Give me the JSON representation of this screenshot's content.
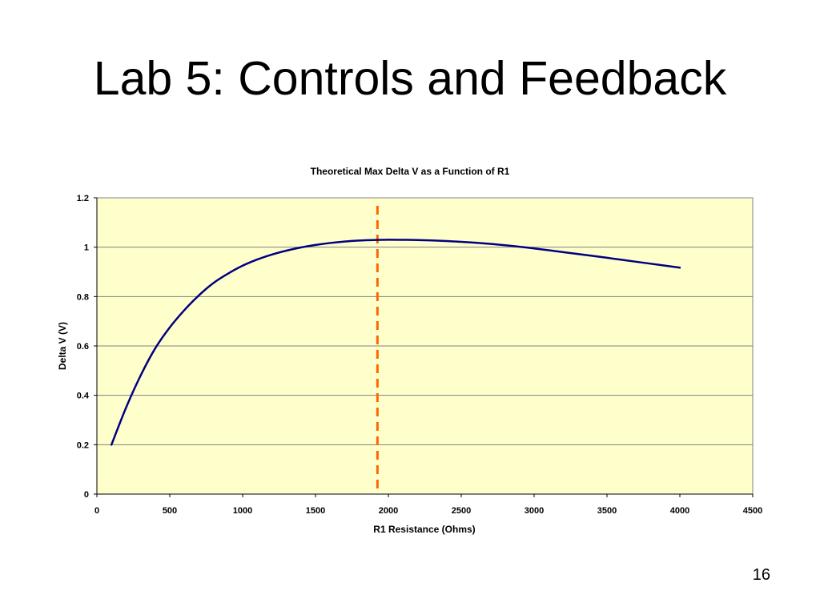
{
  "slide": {
    "title": "Lab 5: Controls and Feedback",
    "page_number": "16"
  },
  "colors": {
    "plot_background": "#FFFFCC",
    "series_line": "#000080",
    "marker_line": "#FF6600",
    "gridline": "#808080"
  },
  "chart_data": {
    "type": "line",
    "title": "Theoretical Max Delta V as a Function of R1",
    "xlabel": "R1 Resistance (Ohms)",
    "ylabel": "Delta V (V)",
    "xlim": [
      0,
      4500
    ],
    "ylim": [
      0,
      1.2
    ],
    "x_ticks": [
      "0",
      "500",
      "1000",
      "1500",
      "2000",
      "2500",
      "3000",
      "3500",
      "4000",
      "4500"
    ],
    "y_ticks": [
      "0",
      "0.2",
      "0.4",
      "0.6",
      "0.8",
      "1",
      "1.2"
    ],
    "grid": "horizontal",
    "legend": "none",
    "series": [
      {
        "x": [
          100,
          200,
          300,
          400,
          500,
          600,
          700,
          800,
          900,
          1000,
          1100,
          1200,
          1300,
          1400,
          1500,
          1600,
          1700,
          1800,
          1900,
          2000,
          2200,
          2400,
          2600,
          2800,
          3000,
          3200,
          3400,
          3600,
          3800,
          4000
        ],
        "values": [
          0.2,
          0.35,
          0.48,
          0.59,
          0.675,
          0.745,
          0.805,
          0.855,
          0.893,
          0.925,
          0.95,
          0.97,
          0.986,
          0.999,
          1.009,
          1.017,
          1.023,
          1.027,
          1.029,
          1.03,
          1.029,
          1.025,
          1.018,
          1.008,
          0.995,
          0.98,
          0.965,
          0.949,
          0.933,
          0.917
        ]
      }
    ],
    "reference_line": {
      "orientation": "vertical",
      "x": 1925,
      "style": "dashed"
    }
  }
}
